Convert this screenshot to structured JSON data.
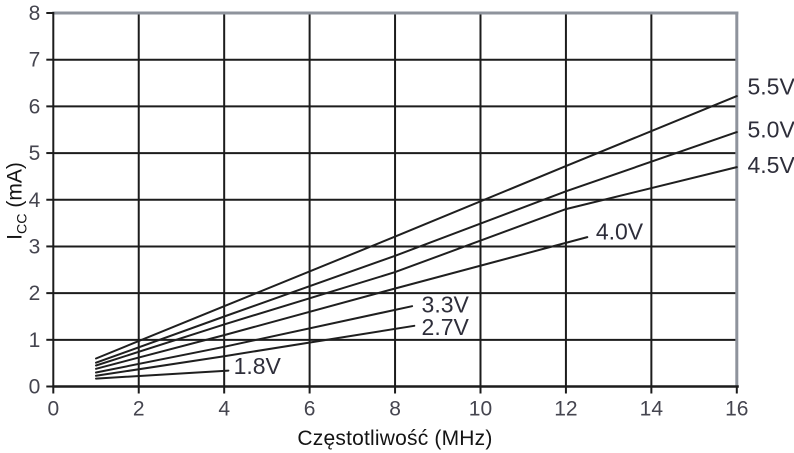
{
  "chart_data": {
    "type": "line",
    "title": "",
    "xlabel": "Częstotliwość (MHz)",
    "ylabel": "ICC (mA)",
    "ylabel_parts": {
      "main": "I",
      "sub": "CC",
      "unit": " (mA)"
    },
    "xlim": [
      0,
      16
    ],
    "ylim": [
      0,
      8
    ],
    "xticks": [
      0,
      2,
      4,
      6,
      8,
      10,
      12,
      14,
      16
    ],
    "yticks": [
      0,
      1,
      2,
      3,
      4,
      5,
      6,
      7,
      8
    ],
    "grid": true,
    "legend_position": "labels-on-lines",
    "series": [
      {
        "name": "5.5V",
        "points": [
          [
            1,
            0.6
          ],
          [
            4,
            1.72
          ],
          [
            8,
            3.21
          ],
          [
            12,
            4.72
          ],
          [
            16,
            6.22
          ]
        ]
      },
      {
        "name": "5.0V",
        "points": [
          [
            1,
            0.51
          ],
          [
            4,
            1.5
          ],
          [
            8,
            2.8
          ],
          [
            12,
            4.18
          ],
          [
            16,
            5.45
          ]
        ]
      },
      {
        "name": "4.5V",
        "points": [
          [
            1,
            0.45
          ],
          [
            4,
            1.33
          ],
          [
            8,
            2.45
          ],
          [
            12,
            3.8
          ],
          [
            16,
            4.7
          ]
        ]
      },
      {
        "name": "4.0V",
        "points": [
          [
            1,
            0.38
          ],
          [
            4,
            1.1
          ],
          [
            8,
            2.1
          ],
          [
            12.5,
            3.2
          ]
        ]
      },
      {
        "name": "3.3V",
        "points": [
          [
            1,
            0.3
          ],
          [
            4,
            0.85
          ],
          [
            8.4,
            1.72
          ]
        ]
      },
      {
        "name": "2.7V",
        "points": [
          [
            1,
            0.23
          ],
          [
            4,
            0.65
          ],
          [
            8.45,
            1.3
          ]
        ]
      },
      {
        "name": "1.8V",
        "points": [
          [
            1,
            0.17
          ],
          [
            4.1,
            0.34
          ]
        ]
      }
    ],
    "annotations": [
      {
        "text": "5.5V",
        "x": 16.25,
        "y": 6.43,
        "outside": true
      },
      {
        "text": "5.0V",
        "x": 16.25,
        "y": 5.51,
        "outside": true
      },
      {
        "text": "4.5V",
        "x": 16.25,
        "y": 4.75,
        "outside": true
      },
      {
        "text": "4.0V",
        "x": 12.7,
        "y": 3.32,
        "outside": false
      },
      {
        "text": "3.3V",
        "x": 8.62,
        "y": 1.76,
        "outside": false
      },
      {
        "text": "2.7V",
        "x": 8.62,
        "y": 1.28,
        "outside": false
      },
      {
        "text": "1.8V",
        "x": 4.22,
        "y": 0.44,
        "outside": false
      }
    ]
  },
  "colors": {
    "background": "#ffffff",
    "grid": "#1c1c1c",
    "axis": "#1c1c1c",
    "frame_gray": "#8e939c",
    "series_line": "#1f1f1f",
    "tick_label": "#45454f",
    "series_label": "#2e2e3a",
    "axis_title": "#141414"
  }
}
